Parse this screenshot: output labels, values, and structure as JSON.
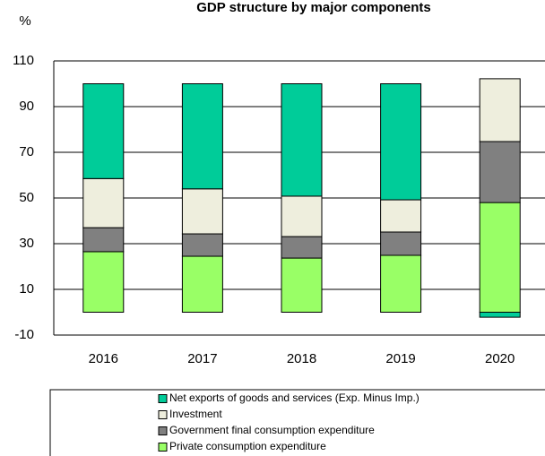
{
  "chart_data": {
    "type": "stacked_bar",
    "title": "GDP structure by major components",
    "y_label": "%",
    "categories": [
      "2016",
      "2017",
      "2018",
      "2019",
      "2020"
    ],
    "series": [
      {
        "name": "Private consumption expenditure",
        "color": "#99ff66",
        "values": [
          26.5,
          24.5,
          23.7,
          24.9,
          48
        ]
      },
      {
        "name": "Government final consumption expenditure",
        "color": "#808080",
        "values": [
          10.5,
          9.8,
          9.4,
          10.2,
          26.7
        ]
      },
      {
        "name": "Investment",
        "color": "#eeeedd",
        "values": [
          21.5,
          19.7,
          17.7,
          14.1,
          27.5
        ]
      },
      {
        "name": "Net exports of goods and services (Exp. Minus Imp.)",
        "color": "#00cc99",
        "values": [
          41.5,
          46,
          49.2,
          50.8,
          -2.2
        ]
      }
    ],
    "ylim": [
      -10,
      110
    ],
    "yticks": [
      -10,
      10,
      30,
      50,
      70,
      90,
      110
    ],
    "grid": true
  }
}
